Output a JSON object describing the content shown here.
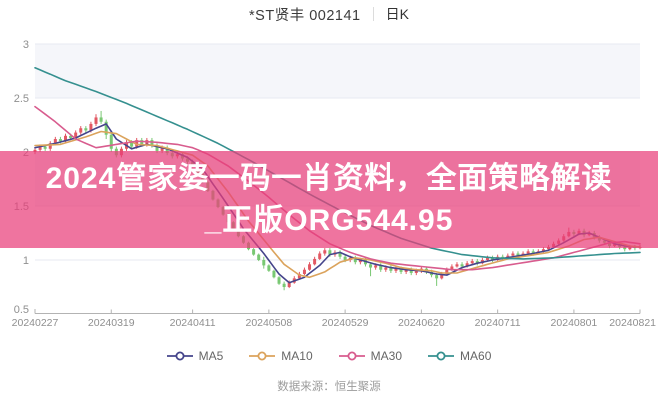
{
  "header": {
    "stock": "*ST贤丰 002141",
    "period": "日K"
  },
  "banner": {
    "line1": "2024管家婆一码一肖资料，全面策略解读",
    "line2": "_正版ORG544.95",
    "bg_color": "rgba(233,62,122,0.72)",
    "text_color": "#ffffff"
  },
  "footer": {
    "source": "数据来源：恒生聚源"
  },
  "chart_data": {
    "type": "candlestick",
    "title": "*ST贤丰 002141 日K",
    "ylabel": "",
    "xlabel": "",
    "ylim": [
      0.5,
      3
    ],
    "yticks": [
      3,
      2.5,
      2,
      1.5,
      1,
      0.5
    ],
    "xtick_labels": [
      "20240227",
      "20240319",
      "20240411",
      "20240508",
      "20240529",
      "20240620",
      "20240711",
      "20240801",
      "20240821"
    ],
    "xtick_indices": [
      0,
      15,
      31,
      46,
      61,
      76,
      91,
      106,
      119
    ],
    "grid": true,
    "legend_position": "bottom",
    "up_color": "#e25863",
    "down_color": "#79c873",
    "band_color": "#f5f6fa",
    "grid_color": "#e7e9f1",
    "axis_color": "#b3b3b3",
    "candles": [
      [
        2.0,
        2.04,
        1.98,
        2.02
      ],
      [
        2.02,
        2.07,
        2.0,
        2.05
      ],
      [
        2.05,
        2.07,
        2.01,
        2.03
      ],
      [
        2.03,
        2.1,
        2.01,
        2.08
      ],
      [
        2.08,
        2.14,
        2.06,
        2.12
      ],
      [
        2.12,
        2.14,
        2.08,
        2.1
      ],
      [
        2.1,
        2.17,
        2.08,
        2.15
      ],
      [
        2.15,
        2.17,
        2.11,
        2.13
      ],
      [
        2.13,
        2.2,
        2.11,
        2.18
      ],
      [
        2.18,
        2.24,
        2.16,
        2.22
      ],
      [
        2.22,
        2.24,
        2.18,
        2.2
      ],
      [
        2.2,
        2.28,
        2.18,
        2.26
      ],
      [
        2.26,
        2.35,
        2.24,
        2.32
      ],
      [
        2.32,
        2.38,
        2.26,
        2.28
      ],
      [
        2.28,
        2.3,
        2.12,
        2.16
      ],
      [
        2.16,
        2.18,
        2.0,
        2.03
      ],
      [
        2.03,
        2.05,
        1.95,
        1.97
      ],
      [
        1.97,
        2.05,
        1.95,
        2.03
      ],
      [
        2.03,
        2.11,
        2.01,
        2.09
      ],
      [
        2.09,
        2.11,
        2.03,
        2.05
      ],
      [
        2.05,
        2.13,
        2.03,
        2.11
      ],
      [
        2.11,
        2.13,
        2.05,
        2.07
      ],
      [
        2.07,
        2.13,
        2.05,
        2.11
      ],
      [
        2.11,
        2.13,
        2.04,
        2.06
      ],
      [
        2.06,
        2.08,
        1.99,
        2.01
      ],
      [
        2.01,
        2.06,
        1.99,
        2.04
      ],
      [
        2.04,
        2.06,
        1.97,
        1.99
      ],
      [
        1.99,
        2.01,
        1.94,
        1.96
      ],
      [
        1.96,
        2.0,
        1.94,
        1.98
      ],
      [
        1.98,
        2.0,
        1.92,
        1.94
      ],
      [
        1.94,
        1.96,
        1.89,
        1.91
      ],
      [
        1.91,
        1.93,
        1.86,
        1.88
      ],
      [
        1.88,
        1.89,
        1.79,
        1.8
      ],
      [
        1.8,
        1.81,
        1.71,
        1.72
      ],
      [
        1.72,
        1.73,
        1.63,
        1.64
      ],
      [
        1.64,
        1.65,
        1.55,
        1.56
      ],
      [
        1.56,
        1.57,
        1.48,
        1.49
      ],
      [
        1.49,
        1.5,
        1.41,
        1.42
      ],
      [
        1.42,
        1.43,
        1.34,
        1.35
      ],
      [
        1.35,
        1.36,
        1.27,
        1.28
      ],
      [
        1.28,
        1.29,
        1.21,
        1.22
      ],
      [
        1.22,
        1.23,
        1.15,
        1.16
      ],
      [
        1.16,
        1.17,
        1.09,
        1.1
      ],
      [
        1.1,
        1.11,
        1.04,
        1.05
      ],
      [
        1.05,
        1.06,
        0.99,
        1.0
      ],
      [
        1.0,
        1.03,
        0.92,
        0.95
      ],
      [
        0.95,
        0.96,
        0.89,
        0.9
      ],
      [
        0.9,
        0.91,
        0.83,
        0.84
      ],
      [
        0.84,
        0.85,
        0.77,
        0.78
      ],
      [
        0.78,
        0.8,
        0.72,
        0.75
      ],
      [
        0.75,
        0.81,
        0.74,
        0.79
      ],
      [
        0.79,
        0.85,
        0.78,
        0.83
      ],
      [
        0.83,
        0.89,
        0.82,
        0.87
      ],
      [
        0.87,
        0.93,
        0.86,
        0.91
      ],
      [
        0.91,
        0.98,
        0.9,
        0.96
      ],
      [
        0.96,
        1.03,
        0.95,
        1.01
      ],
      [
        1.01,
        1.08,
        1.0,
        1.06
      ],
      [
        1.06,
        1.11,
        1.04,
        1.09
      ],
      [
        1.09,
        1.11,
        1.03,
        1.05
      ],
      [
        1.05,
        1.09,
        1.03,
        1.07
      ],
      [
        1.07,
        1.09,
        1.01,
        1.03
      ],
      [
        1.03,
        1.05,
        0.98,
        1.0
      ],
      [
        1.0,
        1.04,
        0.98,
        1.02
      ],
      [
        1.02,
        1.04,
        0.96,
        0.98
      ],
      [
        0.98,
        1.02,
        0.96,
        1.0
      ],
      [
        1.0,
        1.02,
        0.94,
        0.96
      ],
      [
        0.96,
        0.98,
        0.85,
        0.93
      ],
      [
        0.93,
        0.97,
        0.91,
        0.95
      ],
      [
        0.95,
        0.97,
        0.89,
        0.91
      ],
      [
        0.91,
        0.95,
        0.89,
        0.93
      ],
      [
        0.93,
        0.95,
        0.88,
        0.9
      ],
      [
        0.9,
        0.94,
        0.88,
        0.92
      ],
      [
        0.92,
        0.94,
        0.87,
        0.89
      ],
      [
        0.89,
        0.93,
        0.87,
        0.91
      ],
      [
        0.91,
        0.93,
        0.86,
        0.88
      ],
      [
        0.88,
        0.92,
        0.86,
        0.9
      ],
      [
        0.9,
        0.94,
        0.88,
        0.92
      ],
      [
        0.92,
        0.94,
        0.87,
        0.89
      ],
      [
        0.89,
        0.91,
        0.84,
        0.86
      ],
      [
        0.86,
        0.88,
        0.76,
        0.83
      ],
      [
        0.83,
        0.89,
        0.82,
        0.87
      ],
      [
        0.87,
        0.93,
        0.86,
        0.91
      ],
      [
        0.91,
        0.96,
        0.9,
        0.94
      ],
      [
        0.94,
        0.98,
        0.93,
        0.96
      ],
      [
        0.96,
        0.98,
        0.92,
        0.94
      ],
      [
        0.94,
        0.99,
        0.93,
        0.97
      ],
      [
        0.97,
        1.01,
        0.96,
        0.99
      ],
      [
        0.99,
        1.01,
        0.95,
        0.97
      ],
      [
        0.97,
        1.02,
        0.96,
        1.0
      ],
      [
        1.0,
        1.04,
        0.99,
        1.02
      ],
      [
        1.02,
        1.04,
        0.98,
        1.0
      ],
      [
        1.0,
        1.05,
        0.99,
        1.03
      ],
      [
        1.03,
        1.05,
        1.0,
        1.02
      ],
      [
        1.02,
        1.06,
        1.01,
        1.04
      ],
      [
        1.04,
        1.08,
        1.03,
        1.06
      ],
      [
        1.06,
        1.08,
        1.02,
        1.04
      ],
      [
        1.04,
        1.08,
        1.03,
        1.06
      ],
      [
        1.06,
        1.1,
        1.05,
        1.08
      ],
      [
        1.08,
        1.1,
        1.04,
        1.06
      ],
      [
        1.06,
        1.1,
        1.05,
        1.08
      ],
      [
        1.08,
        1.12,
        1.07,
        1.1
      ],
      [
        1.1,
        1.14,
        1.09,
        1.12
      ],
      [
        1.12,
        1.17,
        1.11,
        1.15
      ],
      [
        1.15,
        1.2,
        1.14,
        1.18
      ],
      [
        1.18,
        1.24,
        1.17,
        1.22
      ],
      [
        1.22,
        1.3,
        1.21,
        1.26
      ],
      [
        1.26,
        1.28,
        1.22,
        1.24
      ],
      [
        1.24,
        1.29,
        1.23,
        1.27
      ],
      [
        1.27,
        1.29,
        1.21,
        1.23
      ],
      [
        1.23,
        1.27,
        1.22,
        1.25
      ],
      [
        1.25,
        1.27,
        1.19,
        1.21
      ],
      [
        1.21,
        1.23,
        1.16,
        1.18
      ],
      [
        1.18,
        1.2,
        1.14,
        1.16
      ],
      [
        1.16,
        1.18,
        1.11,
        1.13
      ],
      [
        1.13,
        1.17,
        1.12,
        1.15
      ],
      [
        1.15,
        1.17,
        1.1,
        1.12
      ],
      [
        1.12,
        1.14,
        1.08,
        1.1
      ],
      [
        1.1,
        1.14,
        1.09,
        1.12
      ],
      [
        1.12,
        1.14,
        1.09,
        1.11
      ],
      [
        1.11,
        1.14,
        1.1,
        1.12
      ]
    ],
    "series": [
      {
        "name": "MA5",
        "color": "#45458b",
        "anchors": [
          [
            0,
            2.04
          ],
          [
            4,
            2.08
          ],
          [
            8,
            2.13
          ],
          [
            12,
            2.22
          ],
          [
            14,
            2.26
          ],
          [
            16,
            2.12
          ],
          [
            19,
            2.03
          ],
          [
            22,
            2.07
          ],
          [
            26,
            2.03
          ],
          [
            30,
            1.95
          ],
          [
            33,
            1.84
          ],
          [
            37,
            1.57
          ],
          [
            41,
            1.29
          ],
          [
            45,
            1.06
          ],
          [
            48,
            0.87
          ],
          [
            50,
            0.79
          ],
          [
            53,
            0.84
          ],
          [
            56,
            0.95
          ],
          [
            58,
            1.05
          ],
          [
            60,
            1.07
          ],
          [
            62,
            1.03
          ],
          [
            64,
            1.0
          ],
          [
            67,
            0.96
          ],
          [
            70,
            0.93
          ],
          [
            73,
            0.91
          ],
          [
            76,
            0.9
          ],
          [
            79,
            0.87
          ],
          [
            81,
            0.86
          ],
          [
            84,
            0.93
          ],
          [
            87,
            0.97
          ],
          [
            90,
            1.0
          ],
          [
            94,
            1.03
          ],
          [
            98,
            1.06
          ],
          [
            101,
            1.09
          ],
          [
            104,
            1.16
          ],
          [
            107,
            1.24
          ],
          [
            109,
            1.25
          ],
          [
            112,
            1.19
          ],
          [
            114,
            1.15
          ],
          [
            116,
            1.13
          ],
          [
            119,
            1.12
          ]
        ]
      },
      {
        "name": "MA10",
        "color": "#dba35c",
        "anchors": [
          [
            0,
            2.06
          ],
          [
            5,
            2.07
          ],
          [
            10,
            2.14
          ],
          [
            13,
            2.19
          ],
          [
            16,
            2.17
          ],
          [
            20,
            2.07
          ],
          [
            24,
            2.06
          ],
          [
            28,
            2.01
          ],
          [
            31,
            1.97
          ],
          [
            34,
            1.87
          ],
          [
            38,
            1.63
          ],
          [
            42,
            1.36
          ],
          [
            46,
            1.13
          ],
          [
            49,
            0.96
          ],
          [
            52,
            0.86
          ],
          [
            54,
            0.84
          ],
          [
            57,
            0.89
          ],
          [
            60,
            0.98
          ],
          [
            63,
            1.02
          ],
          [
            66,
            1.0
          ],
          [
            69,
            0.97
          ],
          [
            72,
            0.93
          ],
          [
            75,
            0.91
          ],
          [
            78,
            0.9
          ],
          [
            80,
            0.88
          ],
          [
            83,
            0.88
          ],
          [
            86,
            0.92
          ],
          [
            89,
            0.96
          ],
          [
            93,
            1.01
          ],
          [
            97,
            1.04
          ],
          [
            101,
            1.07
          ],
          [
            105,
            1.13
          ],
          [
            108,
            1.19
          ],
          [
            111,
            1.21
          ],
          [
            114,
            1.17
          ],
          [
            117,
            1.13
          ],
          [
            119,
            1.12
          ]
        ]
      },
      {
        "name": "MA30",
        "color": "#d85c8e",
        "anchors": [
          [
            0,
            2.42
          ],
          [
            4,
            2.28
          ],
          [
            8,
            2.12
          ],
          [
            12,
            2.04
          ],
          [
            16,
            2.07
          ],
          [
            20,
            2.1
          ],
          [
            24,
            2.09
          ],
          [
            28,
            2.07
          ],
          [
            31,
            2.04
          ],
          [
            34,
            1.98
          ],
          [
            38,
            1.87
          ],
          [
            42,
            1.73
          ],
          [
            46,
            1.58
          ],
          [
            50,
            1.42
          ],
          [
            54,
            1.27
          ],
          [
            58,
            1.15
          ],
          [
            62,
            1.07
          ],
          [
            66,
            1.01
          ],
          [
            70,
            0.97
          ],
          [
            74,
            0.95
          ],
          [
            78,
            0.93
          ],
          [
            82,
            0.91
          ],
          [
            86,
            0.91
          ],
          [
            90,
            0.93
          ],
          [
            94,
            0.96
          ],
          [
            98,
            0.99
          ],
          [
            102,
            1.02
          ],
          [
            106,
            1.07
          ],
          [
            110,
            1.12
          ],
          [
            113,
            1.16
          ],
          [
            116,
            1.17
          ],
          [
            119,
            1.15
          ]
        ]
      },
      {
        "name": "MA60",
        "color": "#35908f",
        "anchors": [
          [
            0,
            2.78
          ],
          [
            6,
            2.66
          ],
          [
            12,
            2.56
          ],
          [
            18,
            2.45
          ],
          [
            24,
            2.33
          ],
          [
            30,
            2.21
          ],
          [
            36,
            2.08
          ],
          [
            42,
            1.93
          ],
          [
            48,
            1.77
          ],
          [
            54,
            1.61
          ],
          [
            60,
            1.46
          ],
          [
            66,
            1.32
          ],
          [
            72,
            1.2
          ],
          [
            78,
            1.11
          ],
          [
            84,
            1.05
          ],
          [
            90,
            1.02
          ],
          [
            96,
            1.01
          ],
          [
            102,
            1.02
          ],
          [
            108,
            1.04
          ],
          [
            114,
            1.06
          ],
          [
            119,
            1.07
          ]
        ]
      }
    ]
  }
}
